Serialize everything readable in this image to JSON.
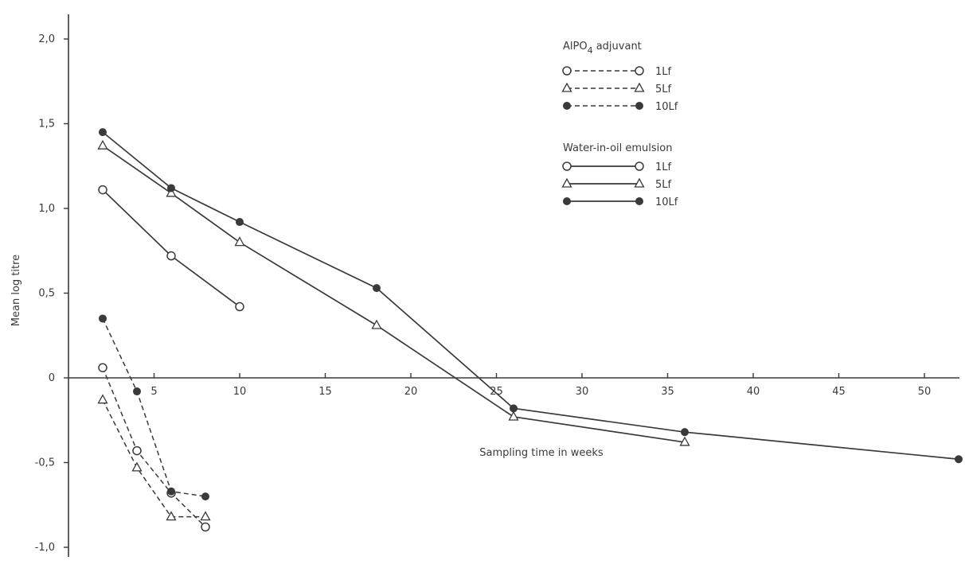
{
  "chart_data": {
    "type": "line",
    "title": "",
    "xlabel": "Sampling time in weeks",
    "ylabel": "Mean log titre",
    "xlim": [
      0,
      53
    ],
    "ylim": [
      -1.0,
      2.0
    ],
    "x_ticks": [
      5,
      10,
      15,
      20,
      25,
      30,
      35,
      40,
      45,
      50
    ],
    "y_ticks": [
      {
        "value": 2.0,
        "label": "2,0"
      },
      {
        "value": 1.5,
        "label": "1,5"
      },
      {
        "value": 1.0,
        "label": "1,0"
      },
      {
        "value": 0.5,
        "label": "0,5"
      },
      {
        "value": 0.0,
        "label": "0"
      },
      {
        "value": -0.5,
        "label": "-0,5"
      },
      {
        "value": -1.0,
        "label": "-1,0"
      }
    ],
    "grid": false,
    "legend_position": "top-right",
    "legend_groups": [
      {
        "title": "AlPO",
        "title_sub": "4",
        "title_suffix": " adjuvant",
        "style": "dashed"
      },
      {
        "title": "Water-in-oil emulsion",
        "title_sub": "",
        "title_suffix": "",
        "style": "solid"
      }
    ],
    "series": [
      {
        "name": "1Lf",
        "group": 0,
        "style": "dashed",
        "marker": "open-circle",
        "x": [
          2,
          4,
          6,
          8
        ],
        "y": [
          0.06,
          -0.43,
          -0.68,
          -0.88
        ]
      },
      {
        "name": "5Lf",
        "group": 0,
        "style": "dashed",
        "marker": "open-triangle",
        "x": [
          2,
          4,
          6,
          8
        ],
        "y": [
          -0.13,
          -0.53,
          -0.82,
          -0.82
        ]
      },
      {
        "name": "10Lf",
        "group": 0,
        "style": "dashed",
        "marker": "filled-circle",
        "x": [
          2,
          4,
          6,
          8
        ],
        "y": [
          0.35,
          -0.08,
          -0.67,
          -0.7
        ]
      },
      {
        "name": "1Lf",
        "group": 1,
        "style": "solid",
        "marker": "open-circle",
        "x": [
          2,
          6,
          10
        ],
        "y": [
          1.11,
          0.72,
          0.42
        ]
      },
      {
        "name": "5Lf",
        "group": 1,
        "style": "solid",
        "marker": "open-triangle",
        "x": [
          2,
          6,
          10,
          18,
          26,
          36
        ],
        "y": [
          1.37,
          1.09,
          0.8,
          0.31,
          -0.23,
          -0.38
        ]
      },
      {
        "name": "10Lf",
        "group": 1,
        "style": "solid",
        "marker": "filled-circle",
        "x": [
          2,
          6,
          10,
          18,
          26,
          36,
          52
        ],
        "y": [
          1.45,
          1.12,
          0.92,
          0.53,
          -0.18,
          -0.32,
          -0.48
        ]
      }
    ]
  }
}
